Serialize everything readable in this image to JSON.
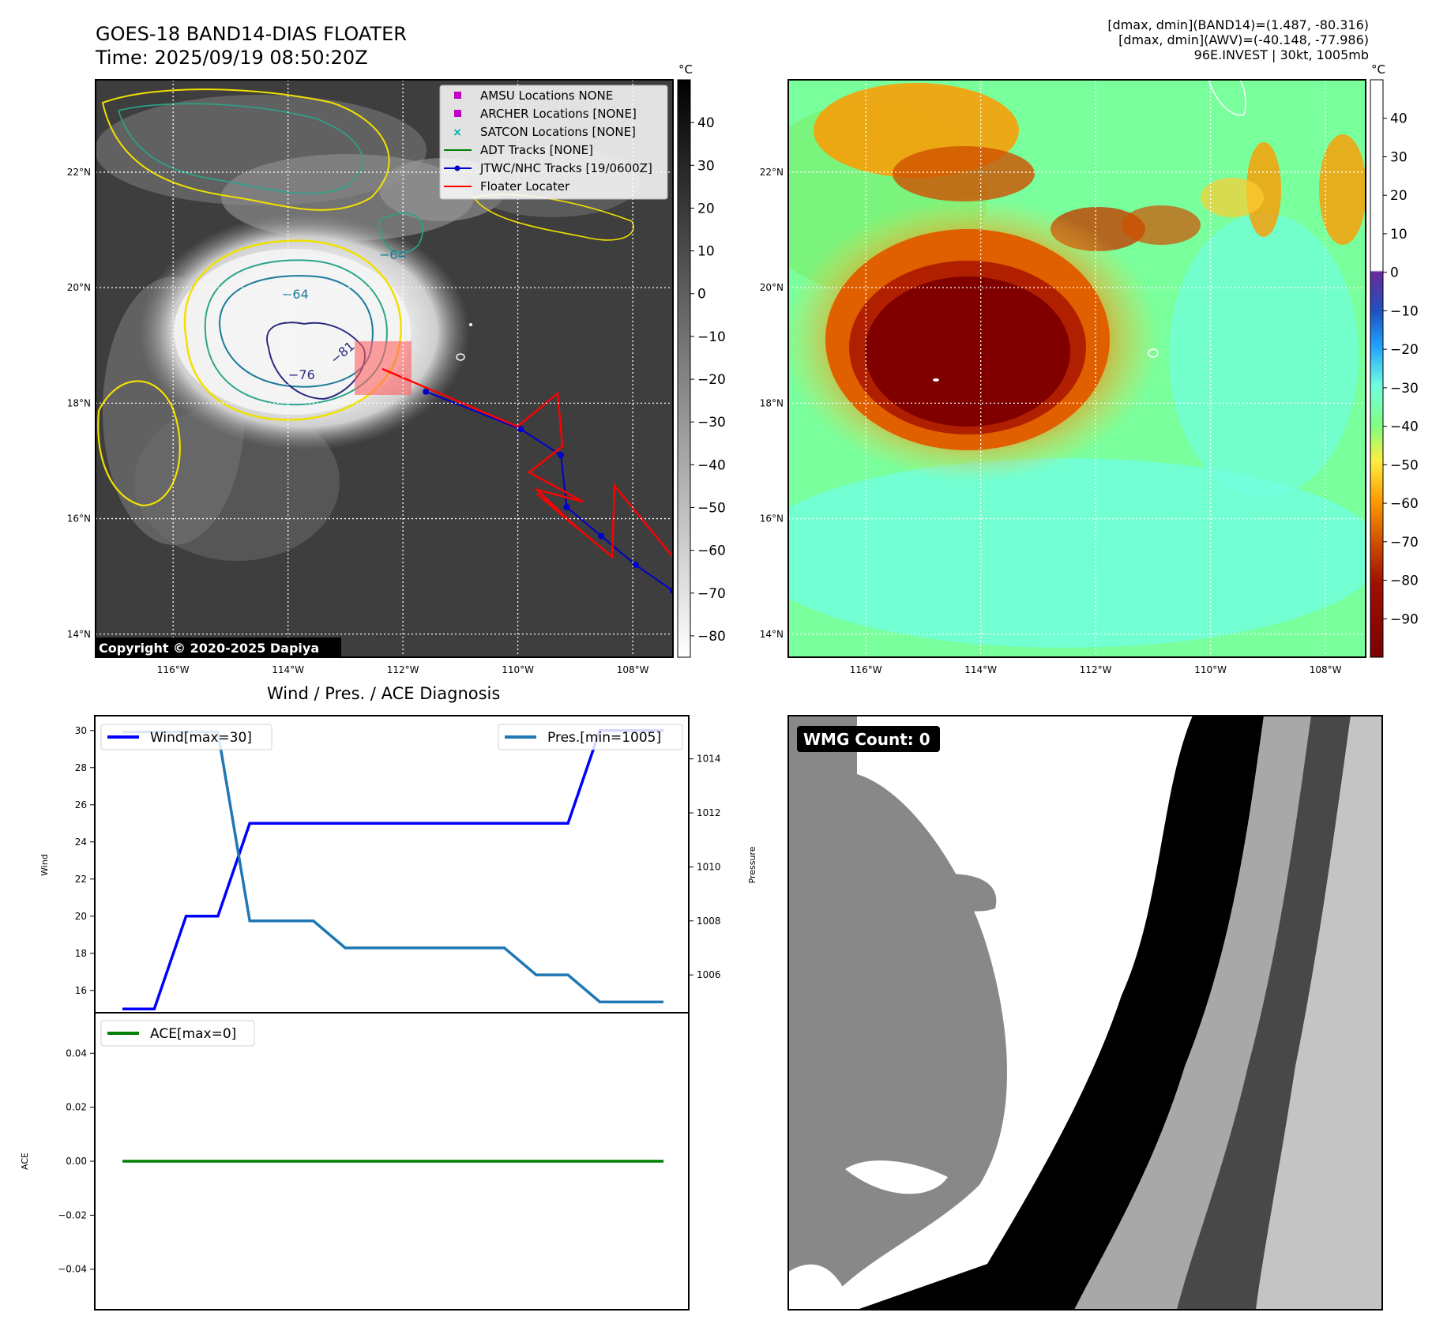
{
  "header": {
    "title_line1": "GOES-18 BAND14-DIAS FLOATER",
    "title_line2": "Time: 2025/09/19 08:50:20Z",
    "info_line1": "[dmax, dmin](BAND14)=(1.487, -80.316)",
    "info_line2": "[dmax, dmin](AWV)=(-40.148, -77.986)",
    "info_line3": "96E.INVEST | 30kt, 1005mb"
  },
  "copyright": "Copyright © 2020-2025 Dapiya",
  "colors": {
    "wind": "#0000ff",
    "pressure": "#1f77b4",
    "ace": "#008000",
    "jtwc": "#0000cc",
    "floater": "#ff0000",
    "amsu": "#c000c0",
    "satcon": "#00b0b0",
    "adt": "#008000"
  },
  "map_axes": {
    "lat_labels": [
      "22°N",
      "20°N",
      "18°N",
      "16°N",
      "14°N"
    ],
    "lat_values": [
      22,
      20,
      18,
      16,
      14
    ],
    "lon_labels": [
      "116°W",
      "114°W",
      "112°W",
      "110°W",
      "108°W"
    ],
    "lon_values": [
      -116,
      -114,
      -112,
      -110,
      -108
    ],
    "lon_range": [
      -117.35,
      -107.3
    ],
    "lat_range": [
      13.6,
      23.6
    ],
    "unit": "°C"
  },
  "contour_labels": [
    "−64",
    "−76",
    "−81",
    "−64"
  ],
  "legend": [
    {
      "label": "AMSU Locations NONE",
      "icon": "square-marker"
    },
    {
      "label": "ARCHER Locations [NONE]",
      "icon": "square-marker"
    },
    {
      "label": "SATCON Locations [NONE]",
      "icon": "x-marker"
    },
    {
      "label": "ADT Tracks [NONE]",
      "icon": "line"
    },
    {
      "label": "JTWC/NHC Tracks [19/0600Z]",
      "icon": "line-dot"
    },
    {
      "label": "Floater Locater",
      "icon": "line"
    }
  ],
  "colorbar_gray": {
    "ticks": [
      "40",
      "30",
      "20",
      "10",
      "0",
      "−10",
      "−20",
      "−30",
      "−40",
      "−50",
      "−60",
      "−70",
      "−80"
    ],
    "values": [
      40,
      30,
      20,
      10,
      0,
      -10,
      -20,
      -30,
      -40,
      -50,
      -60,
      -70,
      -80
    ],
    "range": [
      -85,
      50
    ]
  },
  "colorbar_color": {
    "ticks": [
      "40",
      "30",
      "20",
      "10",
      "0",
      "−10",
      "−20",
      "−30",
      "−40",
      "−50",
      "−60",
      "−70",
      "−80",
      "−90"
    ],
    "values": [
      40,
      30,
      20,
      10,
      0,
      -10,
      -20,
      -30,
      -40,
      -50,
      -60,
      -70,
      -80,
      -90
    ],
    "range": [
      -100,
      50
    ]
  },
  "chart_data": [
    {
      "type": "line",
      "title": "Wind / Pres. / ACE Diagnosis",
      "ylabel": "Wind",
      "y2label": "Pressure",
      "x": [
        0,
        1,
        2,
        3,
        4,
        5,
        6,
        7,
        8,
        9,
        10,
        11,
        12,
        13,
        14,
        15,
        16,
        17
      ],
      "ylim": [
        14.8,
        30.8
      ],
      "y2lim": [
        1004.6,
        1015.6
      ],
      "yticks": [
        "30",
        "28",
        "26",
        "24",
        "22",
        "20",
        "18",
        "16"
      ],
      "y2ticks": [
        "1014",
        "1012",
        "1010",
        "1008",
        "1006"
      ],
      "series": [
        {
          "name": "Wind[max=30]",
          "axis": "left",
          "values": [
            15,
            15,
            20,
            20,
            25,
            25,
            25,
            25,
            25,
            25,
            25,
            25,
            25,
            25,
            25,
            30,
            30,
            30
          ]
        },
        {
          "name": "Pres.[min=1005]",
          "axis": "right",
          "values": [
            1015,
            1015,
            1015,
            1015,
            1008,
            1008,
            1008,
            1007,
            1007,
            1007,
            1007,
            1007,
            1007,
            1006,
            1006,
            1005,
            1005,
            1005
          ]
        }
      ],
      "legend_left": "Wind[max=30]",
      "legend_right": "Pres.[min=1005]"
    },
    {
      "type": "line",
      "ylabel": "ACE",
      "x": [
        0,
        1,
        2,
        3,
        4,
        5,
        6,
        7,
        8,
        9,
        10,
        11,
        12,
        13,
        14,
        15,
        16,
        17
      ],
      "ylim": [
        -0.055,
        0.055
      ],
      "yticks": [
        "0.04",
        "0.02",
        "0.00",
        "−0.02",
        "−0.04"
      ],
      "series": [
        {
          "name": "ACE[max=0]",
          "values": [
            0,
            0,
            0,
            0,
            0,
            0,
            0,
            0,
            0,
            0,
            0,
            0,
            0,
            0,
            0,
            0,
            0,
            0
          ]
        }
      ]
    },
    {
      "type": "line",
      "title": "JTWC/NHC Tracks [19/0600Z]",
      "x": [
        -111.6,
        -109.95,
        -109.25,
        -109.15,
        -108.55,
        -107.95,
        -107.3
      ],
      "y": [
        18.2,
        17.55,
        17.1,
        16.2,
        15.7,
        15.2,
        14.75
      ]
    }
  ],
  "wmg": {
    "label": "WMG Count: 0"
  }
}
